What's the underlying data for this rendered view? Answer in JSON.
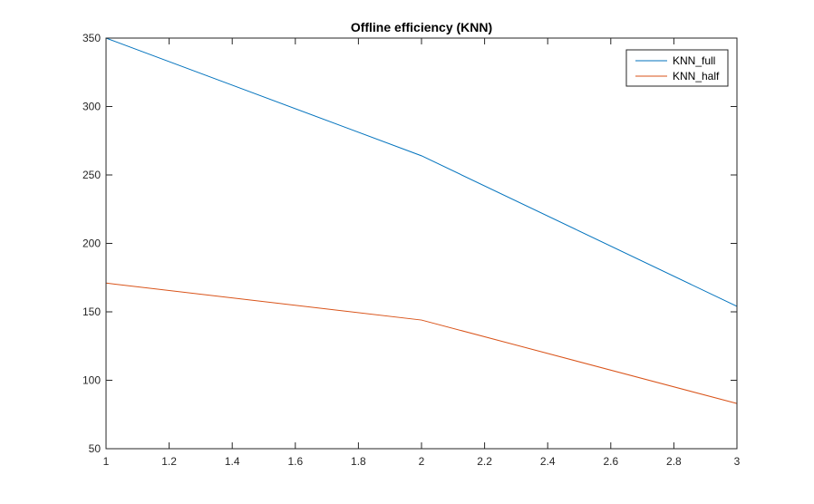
{
  "chart_data": {
    "type": "line",
    "title": "Offline efficiency (KNN)",
    "xlabel": "",
    "ylabel": "",
    "xlim": [
      1,
      3
    ],
    "ylim": [
      50,
      350
    ],
    "xticks": [
      1,
      1.2,
      1.4,
      1.6,
      1.8,
      2,
      2.2,
      2.4,
      2.6,
      2.8,
      3
    ],
    "xtick_labels": [
      "1",
      "1.2",
      "1.4",
      "1.6",
      "1.8",
      "2",
      "2.2",
      "2.4",
      "2.6",
      "2.8",
      "3"
    ],
    "yticks": [
      50,
      100,
      150,
      200,
      250,
      300,
      350
    ],
    "ytick_labels": [
      "50",
      "100",
      "150",
      "200",
      "250",
      "300",
      "350"
    ],
    "grid": false,
    "legend_position": "top-right",
    "series": [
      {
        "name": "KNN_full",
        "color": "#0072BD",
        "x": [
          1,
          2,
          3
        ],
        "y": [
          350,
          264,
          154
        ]
      },
      {
        "name": "KNN_half",
        "color": "#D95319",
        "x": [
          1,
          2,
          3
        ],
        "y": [
          171,
          144,
          83
        ]
      }
    ]
  }
}
